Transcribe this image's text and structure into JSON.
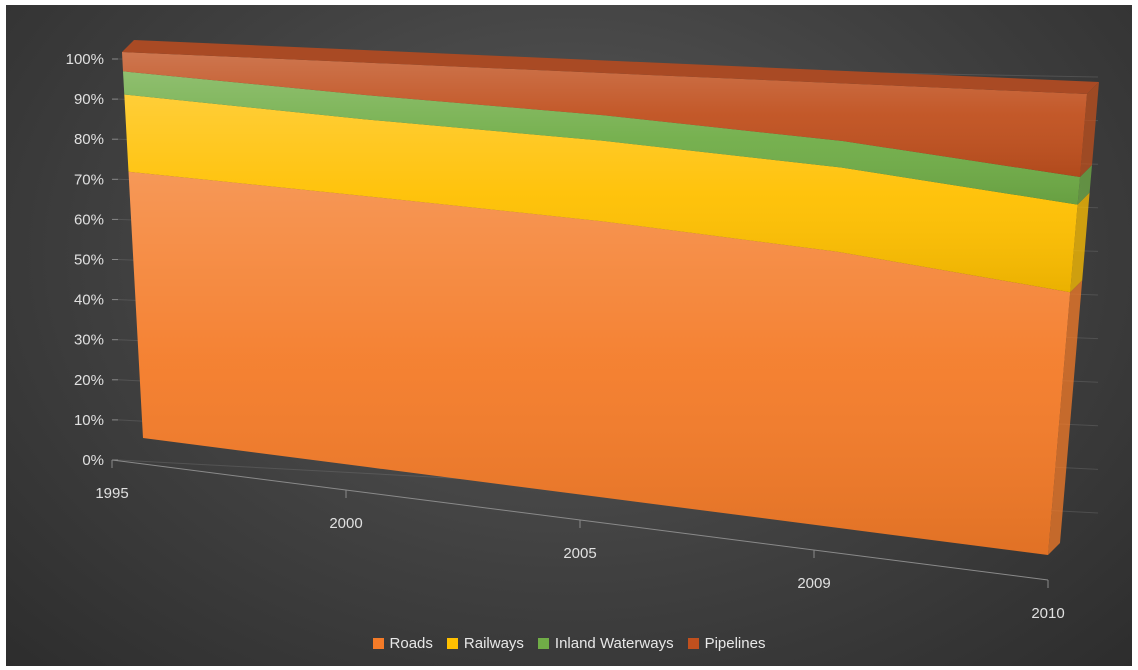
{
  "chart_data": {
    "type": "area",
    "stacked": "percent",
    "style": "3d",
    "categories": [
      "1995",
      "2000",
      "2005",
      "2009",
      "2010"
    ],
    "series": [
      {
        "name": "Roads",
        "color": "#f47b28",
        "values": [
          69,
          67,
          65,
          62,
          57
        ]
      },
      {
        "name": "Railways",
        "color": "#ffc000",
        "values": [
          20,
          19,
          19,
          19,
          19
        ]
      },
      {
        "name": "Inland Waterways",
        "color": "#70ad47",
        "values": [
          6,
          6,
          6,
          6,
          6
        ]
      },
      {
        "name": "Pipelines",
        "color": "#c0501e",
        "values": [
          5,
          8,
          10,
          13,
          18
        ]
      }
    ],
    "ylim": [
      0,
      100
    ],
    "yticks": [
      "0%",
      "10%",
      "20%",
      "30%",
      "40%",
      "50%",
      "60%",
      "70%",
      "80%",
      "90%",
      "100%"
    ],
    "legend_position": "bottom",
    "background": "#404040"
  }
}
